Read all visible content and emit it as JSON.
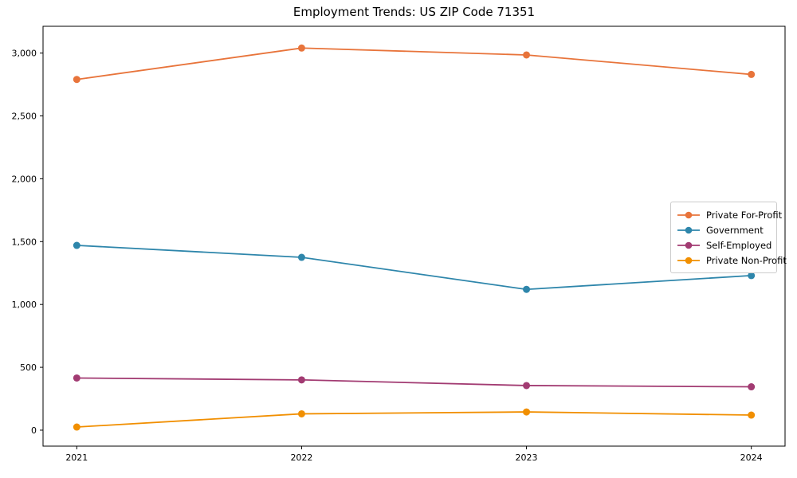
{
  "figure": {
    "background": "#ffffff",
    "spine_color": "#000000",
    "text_color": "#000000"
  },
  "chart_data": {
    "type": "line",
    "title": "Employment Trends: US ZIP Code 71351",
    "xlabel": "",
    "ylabel": "",
    "grid": false,
    "legend_position": "center-right",
    "x": [
      2021,
      2022,
      2023,
      2024
    ],
    "xtick_labels": [
      "2021",
      "2022",
      "2023",
      "2024"
    ],
    "ytick_values": [
      0,
      500,
      1000,
      1500,
      2000,
      2500,
      3000
    ],
    "ytick_labels": [
      "0",
      "500",
      "1,000",
      "1,500",
      "2,000",
      "2,500",
      "3,000"
    ],
    "xlim": [
      2020.85,
      2024.15
    ],
    "ylim": [
      -127,
      3213
    ],
    "series": [
      {
        "name": "Private For-Profit",
        "color": "#E8743B",
        "values": [
          2790,
          3040,
          2985,
          2830
        ]
      },
      {
        "name": "Government",
        "color": "#2E86AB",
        "values": [
          1470,
          1375,
          1120,
          1230
        ]
      },
      {
        "name": "Self-Employed",
        "color": "#A23B72",
        "values": [
          415,
          400,
          355,
          345
        ]
      },
      {
        "name": "Private Non-Profit",
        "color": "#F18F01",
        "values": [
          25,
          130,
          145,
          120
        ]
      }
    ]
  }
}
